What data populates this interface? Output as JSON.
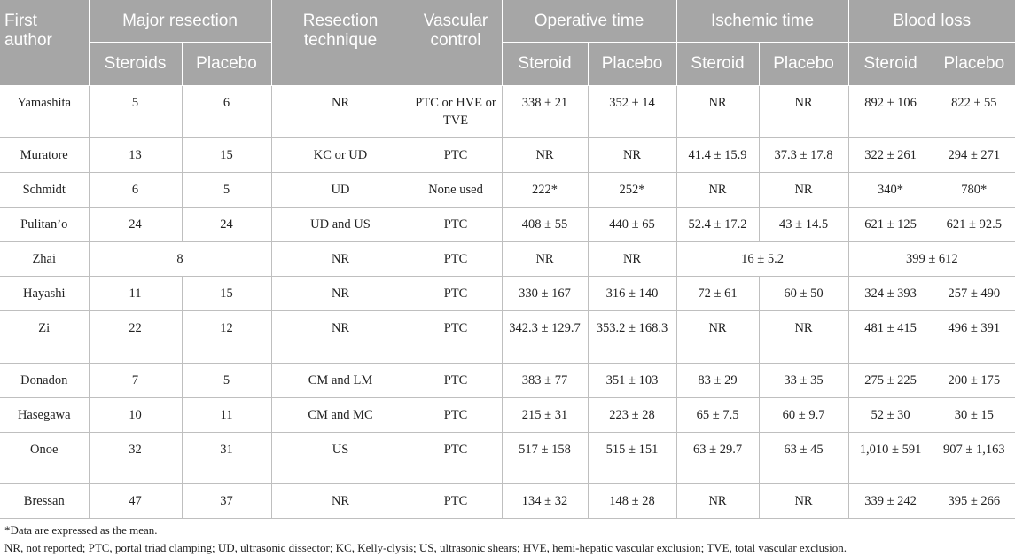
{
  "header": {
    "first_author": "First author",
    "major_resection": "Major resection",
    "resection_technique": "Resection technique",
    "vascular_control": "Vascular control",
    "operative_time": "Operative time",
    "ischemic_time": "Ischemic time",
    "blood_loss": "Blood loss",
    "sub": {
      "steroids": "Steroids",
      "placebo1": "Placebo",
      "steroid_op": "Steroid",
      "placebo_op": "Placebo",
      "steroid_isch": "Steroid",
      "placebo_isch": "Placebo",
      "steroid_bl": "Steroid",
      "placebo_bl": "Placebo"
    }
  },
  "rows": [
    {
      "author": "Yamashita",
      "steroids": "5",
      "placebo": "6",
      "technique": "NR",
      "vascular": "PTC or HVE or TVE",
      "op_s": "338 ± 21",
      "op_p": "352 ± 14",
      "is_s": "NR",
      "is_p": "NR",
      "bl_s": "892 ± 106",
      "bl_p": "822 ± 55"
    },
    {
      "author": "Muratore",
      "steroids": "13",
      "placebo": "15",
      "technique": "KC or UD",
      "vascular": "PTC",
      "op_s": "NR",
      "op_p": "NR",
      "is_s": "41.4 ± 15.9",
      "is_p": "37.3 ± 17.8",
      "bl_s": "322 ± 261",
      "bl_p": "294 ± 271"
    },
    {
      "author": "Schmidt",
      "steroids": "6",
      "placebo": "5",
      "technique": "UD",
      "vascular": "None used",
      "op_s": "222*",
      "op_p": "252*",
      "is_s": "NR",
      "is_p": "NR",
      "bl_s": "340*",
      "bl_p": "780*"
    },
    {
      "author": "Pulitan’o",
      "steroids": "24",
      "placebo": "24",
      "technique": "UD and US",
      "vascular": "PTC",
      "op_s": "408 ± 55",
      "op_p": "440 ± 65",
      "is_s": "52.4 ± 17.2",
      "is_p": "43 ± 14.5",
      "bl_s": "621 ± 125",
      "bl_p": "621 ± 92.5"
    },
    {
      "author": "Zhai",
      "major_merged": "8",
      "technique": "NR",
      "vascular": "PTC",
      "op_s": "NR",
      "op_p": "NR",
      "is_merged": "16 ± 5.2",
      "bl_merged": "399 ± 612"
    },
    {
      "author": "Hayashi",
      "steroids": "11",
      "placebo": "15",
      "technique": "NR",
      "vascular": "PTC",
      "op_s": "330 ± 167",
      "op_p": "316 ± 140",
      "is_s": "72 ± 61",
      "is_p": "60 ± 50",
      "bl_s": "324 ± 393",
      "bl_p": "257 ± 490"
    },
    {
      "author": "Zi",
      "steroids": "22",
      "placebo": "12",
      "technique": "NR",
      "vascular": "PTC",
      "op_s": "342.3 ± 129.7",
      "op_p": "353.2 ± 168.3",
      "is_s": "NR",
      "is_p": "NR",
      "bl_s": "481 ± 415",
      "bl_p": "496 ± 391"
    },
    {
      "author": "Donadon",
      "steroids": "7",
      "placebo": "5",
      "technique": "CM and LM",
      "vascular": "PTC",
      "op_s": "383 ± 77",
      "op_p": "351 ± 103",
      "is_s": "83 ± 29",
      "is_p": "33 ± 35",
      "bl_s": "275 ± 225",
      "bl_p": "200 ± 175"
    },
    {
      "author": "Hasegawa",
      "steroids": "10",
      "placebo": "11",
      "technique": "CM and MC",
      "vascular": "PTC",
      "op_s": "215 ± 31",
      "op_p": "223 ± 28",
      "is_s": "65 ± 7.5",
      "is_p": "60 ± 9.7",
      "bl_s": "52 ± 30",
      "bl_p": "30 ± 15"
    },
    {
      "author": "Onoe",
      "steroids": "32",
      "placebo": "31",
      "technique": "US",
      "vascular": "PTC",
      "op_s": "517 ± 158",
      "op_p": "515 ± 151",
      "is_s": "63 ± 29.7",
      "is_p": "63 ± 45",
      "bl_s": "1,010 ± 591",
      "bl_p": "907 ± 1,163"
    },
    {
      "author": "Bressan",
      "steroids": "47",
      "placebo": "37",
      "technique": "NR",
      "vascular": "PTC",
      "op_s": "134 ± 32",
      "op_p": "148 ± 28",
      "is_s": "NR",
      "is_p": "NR",
      "bl_s": "339 ± 242",
      "bl_p": "395 ± 266"
    }
  ],
  "footnotes": {
    "note1": "*Data are expressed as the mean.",
    "note2": "NR, not reported; PTC, portal triad clamping; UD, ultrasonic dissector; KC, Kelly-clysis; US, ultrasonic shears; HVE, hemi-hepatic vascular exclusion; TVE, total vascular exclusion."
  }
}
